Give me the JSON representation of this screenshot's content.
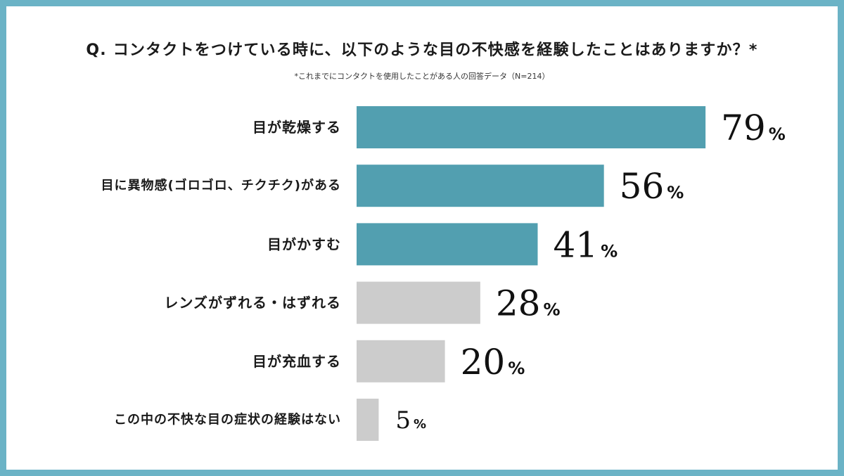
{
  "chart_data": {
    "type": "bar",
    "orientation": "horizontal",
    "title": "Q. コンタクトをつけている時に、以下のような目の不快感を経験したことはありますか？*",
    "subtitle": "*これまでにコンタクトを使用したことがある人の回答データ（N=214）",
    "categories": [
      "目が乾燥する",
      "目に異物感(ゴロゴロ、チクチク)がある",
      "目がかすむ",
      "レンズがずれる・はずれる",
      "目が充血する",
      "この中の不快な目の症状の経験はない"
    ],
    "values": [
      79,
      56,
      41,
      28,
      20,
      5
    ],
    "unit": "%",
    "xlim": [
      0,
      100
    ],
    "grid": false,
    "legend": "none",
    "colors": [
      "#529fb0",
      "#529fb0",
      "#529fb0",
      "#cccccc",
      "#cccccc",
      "#cccccc"
    ]
  }
}
